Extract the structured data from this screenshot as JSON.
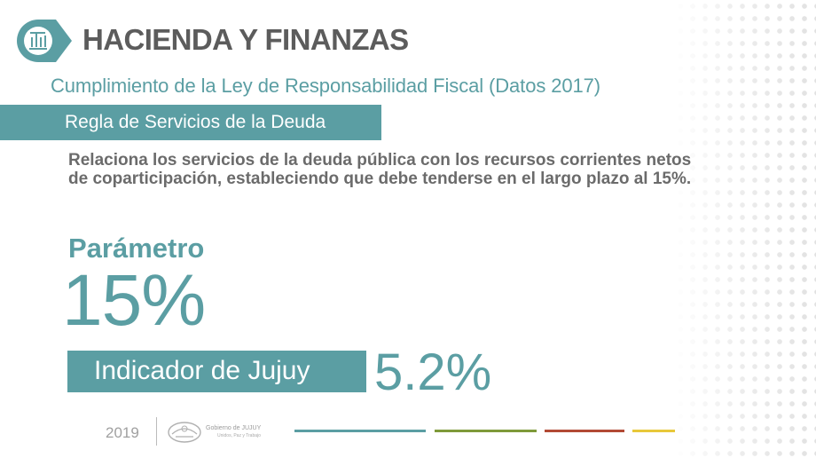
{
  "header": {
    "title": "HACIENDA Y FINANZAS",
    "logo_icon": "building-finance-icon"
  },
  "subtitle": "Cumplimiento de la Ley de Responsabilidad Fiscal (Datos 2017)",
  "section": {
    "label": "Regla de Servicios de la Deuda"
  },
  "description": "Relaciona los servicios de la deuda pública con los recursos corrientes netos de coparticipación, estableciendo que debe tenderse en el largo plazo al 15%.",
  "parameter": {
    "label": "Parámetro",
    "value": "15%"
  },
  "indicator": {
    "label": "Indicador de Jujuy",
    "value": "5.2%"
  },
  "footer": {
    "year": "2019",
    "org_name": "Gobierno de JUJUY",
    "org_tagline": "Unidos, Paz y Trabajo",
    "logo_icon": "government-seal-icon",
    "stripe_colors": [
      "#5b9ea3",
      "#7e9a3a",
      "#b24a35",
      "#e8c83a"
    ]
  },
  "colors": {
    "accent": "#5b9ea3",
    "text": "#6b6b6b",
    "title": "#5c5c5c"
  }
}
